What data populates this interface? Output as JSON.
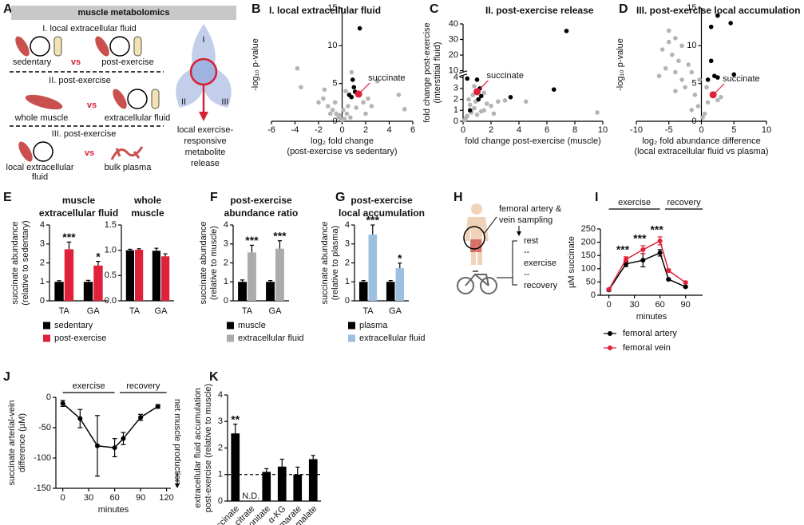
{
  "diagram_a": {
    "panel": "A",
    "header": "muscle metabolomics",
    "rows": [
      {
        "title": "I. local extracellular fluid",
        "left": [
          "sedentary"
        ],
        "vs": "vs",
        "right": [
          "post-exercise"
        ]
      },
      {
        "title": "II. post-exercise",
        "left": [
          "whole muscle"
        ],
        "vs": "vs",
        "right": [
          "extracellular fluid"
        ]
      },
      {
        "title": "III. post-exercise",
        "left": [
          "local extracellular",
          "fluid"
        ],
        "vs": "vs",
        "right": [
          "bulk plasma"
        ]
      }
    ],
    "schematic": {
      "regions": [
        "I",
        "II",
        "III"
      ],
      "caption": [
        "local exercise-",
        "responsive",
        "metabolite",
        "release"
      ]
    }
  },
  "diagram_h": {
    "panel": "H",
    "sampling": [
      "femoral artery &",
      "vein sampling"
    ],
    "protocol": [
      "rest",
      "--",
      "exercise",
      "--",
      "recovery"
    ]
  },
  "chart_data": [
    {
      "type": "scatter",
      "panel": "B",
      "title": "I. local extracellular fluid",
      "x_label": [
        "log₂ fold change",
        "(post-exercise vs sedentary)"
      ],
      "y_label": [
        "-log₁₀ p-value"
      ],
      "xlim": [
        -6,
        6
      ],
      "xticks": [
        -6,
        -4,
        -2,
        0,
        2,
        4,
        6
      ],
      "ylim": [
        0,
        15
      ],
      "yticks": [
        0,
        5,
        10,
        15
      ],
      "series": [
        {
          "color": "#b4b4b4",
          "x": [
            -3.8,
            -3.5,
            -1.6,
            -1.2,
            -0.8,
            -0.5,
            -0.3,
            0.2,
            0.4,
            0.5,
            -1.0,
            0.1,
            1.8,
            2.2,
            3.0,
            2.5,
            4.8,
            5.3,
            0.0,
            -0.2,
            0.7,
            -2.0,
            1.2,
            -0.6,
            0.3,
            0.8,
            -1.5,
            2.0
          ],
          "values": [
            7.0,
            4.5,
            3.0,
            2.0,
            1.5,
            1.0,
            0.5,
            0.3,
            1.0,
            2.0,
            1.0,
            1.5,
            2.5,
            3.0,
            5.3,
            2.0,
            3.5,
            1.6,
            0.2,
            0.8,
            0.5,
            2.5,
            1.8,
            2.5,
            4.0,
            6.5,
            4.2,
            1.0
          ]
        },
        {
          "color": "#000000",
          "x": [
            0.9,
            1.0,
            1.1,
            0.8,
            1.5,
            0.6
          ],
          "values": [
            5.5,
            4.5,
            3.9,
            3.2,
            12.3,
            3.5
          ]
        },
        {
          "name": "succinate",
          "color": "#e0213a",
          "x": [
            1.4
          ],
          "values": [
            3.6
          ]
        }
      ]
    },
    {
      "type": "scatter",
      "panel": "C",
      "title": "II. post-exercise release",
      "x_label": [
        "fold change post-exercise (muscle)"
      ],
      "y_label": [
        "fold change post-exercise",
        "(interstitial fluid)"
      ],
      "xlim": [
        0,
        10
      ],
      "xticks": [
        0,
        2,
        4,
        6,
        8,
        10
      ],
      "ylim": [
        0,
        40
      ],
      "ybreak": [
        4,
        10
      ],
      "yticks": [
        0,
        1,
        2,
        3,
        4,
        10,
        20,
        30,
        40
      ],
      "series": [
        {
          "color": "#b4b4b4",
          "x": [
            0.3,
            0.5,
            0.8,
            0.2,
            0.6,
            1.5,
            2.0,
            1.0,
            0.4,
            1.7,
            2.5,
            3.0,
            0.9,
            1.3,
            0.7,
            2.2,
            9.6,
            0.1,
            4.5,
            1.5,
            0.8
          ],
          "values": [
            0.5,
            1.5,
            1.2,
            0.3,
            0.8,
            1.0,
            1.4,
            0.6,
            2.0,
            1.6,
            1.8,
            1.9,
            1.8,
            0.9,
            2.4,
            0.7,
            0.8,
            0.1,
            1.8,
            2.6,
            3.2
          ]
        },
        {
          "color": "#000000",
          "x": [
            7.4,
            1.0,
            1.2,
            1.3,
            1.1,
            6.5,
            3.4,
            0.5,
            0.3
          ],
          "values": [
            35.5,
            3.8,
            3.0,
            2.3,
            2.0,
            2.9,
            2.2,
            1.0,
            3.9
          ]
        },
        {
          "name": "succinate",
          "color": "#e0213a",
          "x": [
            1.0
          ],
          "values": [
            2.7
          ]
        }
      ]
    },
    {
      "type": "scatter",
      "panel": "D",
      "title": "III. post-exercise local accumulation",
      "x_label": [
        "log₂ fold abundance difference",
        "(local extracellular fluid vs plasma)"
      ],
      "y_label": [
        "-log₁₀ p-value"
      ],
      "xlim": [
        -10,
        10
      ],
      "xticks": [
        -10,
        -5,
        0,
        5,
        10
      ],
      "ylim": [
        0,
        15
      ],
      "yticks": [
        0,
        5,
        10,
        15
      ],
      "series": [
        {
          "color": "#b4b4b4",
          "x": [
            -5.0,
            -4.0,
            -3.0,
            -6.0,
            -4.5,
            -3.5,
            -2.0,
            -5.5,
            -4.0,
            -1.5,
            -3.0,
            -6.5,
            -2.5,
            -1.0,
            -4.0,
            -0.5,
            0.5,
            1.0,
            0.2,
            -1.5,
            2.5,
            3.0,
            0.8,
            -0.3,
            -5.0
          ],
          "values": [
            12.0,
            11.0,
            10.0,
            9.5,
            8.8,
            8.0,
            7.5,
            7.0,
            6.5,
            6.5,
            5.5,
            6.0,
            4.5,
            3.5,
            4.0,
            2.0,
            1.0,
            2.5,
            0.5,
            1.5,
            2.8,
            3.2,
            4.5,
            5.5,
            10.5
          ]
        },
        {
          "color": "#000000",
          "x": [
            1.5,
            2.5,
            4.5,
            1.0,
            2.0,
            1.5,
            2.5,
            5.0
          ],
          "values": [
            12.5,
            14.0,
            13.0,
            5.5,
            6.0,
            8.0,
            5.8,
            6.2
          ]
        },
        {
          "name": "succinate",
          "color": "#e0213a",
          "x": [
            1.8
          ],
          "values": [
            3.5
          ]
        }
      ]
    },
    {
      "type": "bar",
      "panel": "E",
      "title": [
        "muscle",
        "extracellular fluid"
      ],
      "y_label": [
        "succinate abundance",
        "(relative to sedentary)"
      ],
      "categories": [
        "TA",
        "GA"
      ],
      "ylim": [
        0,
        4
      ],
      "yticks": [
        0,
        1,
        2,
        3,
        4
      ],
      "series": [
        {
          "name": "sedentary",
          "color": "#000000",
          "values": [
            1.0,
            1.0
          ],
          "errors": [
            0.06,
            0.08
          ]
        },
        {
          "name": "post-exercise",
          "color": "#e0213a",
          "values": [
            2.72,
            1.86
          ],
          "errors": [
            0.38,
            0.22
          ],
          "stars": [
            "***",
            "*"
          ]
        }
      ]
    },
    {
      "type": "bar",
      "title": [
        "whole",
        "muscle"
      ],
      "categories": [
        "TA",
        "GA"
      ],
      "ylim": [
        0,
        1.5
      ],
      "yticks": [
        {
          "value": 0,
          "label": "0.0"
        },
        {
          "value": 0.5,
          "label": "0.5"
        },
        {
          "value": 1,
          "label": "1.0"
        },
        {
          "value": 1.5,
          "label": "1.5"
        }
      ],
      "series": [
        {
          "color": "#000000",
          "values": [
            1.0,
            0.99
          ],
          "errors": [
            0.02,
            0.05
          ]
        },
        {
          "color": "#e0213a",
          "values": [
            1.01,
            0.88
          ],
          "errors": [
            0.02,
            0.05
          ]
        }
      ]
    },
    {
      "type": "bar",
      "panel": "F",
      "title": [
        "post-exercise",
        "abundance ratio"
      ],
      "y_label": [
        "succinate abundance",
        "(relative to muscle)"
      ],
      "categories": [
        "TA",
        "GA"
      ],
      "ylim": [
        0,
        4
      ],
      "yticks": [
        0,
        1,
        2,
        3,
        4
      ],
      "series": [
        {
          "name": "muscle",
          "color": "#000000",
          "values": [
            1.0,
            1.0
          ],
          "errors": [
            0.1,
            0.07
          ]
        },
        {
          "name": "extracellular fluid",
          "color": "#ababab",
          "values": [
            2.55,
            2.75
          ],
          "errors": [
            0.38,
            0.42
          ],
          "stars": [
            "***",
            "***"
          ]
        }
      ]
    },
    {
      "type": "bar",
      "panel": "G",
      "title": [
        "post-exercise",
        "local accumulation"
      ],
      "y_label": [
        "succinate abundance",
        "(relative to plasma)"
      ],
      "categories": [
        "TA",
        "GA"
      ],
      "ylim": [
        0,
        4
      ],
      "yticks": [
        0,
        1,
        2,
        3,
        4
      ],
      "series": [
        {
          "name": "plasma",
          "color": "#000000",
          "values": [
            1.0,
            1.0
          ],
          "errors": [
            0.07,
            0.07
          ]
        },
        {
          "name": "extracellular fluid",
          "color": "#9dbfe0",
          "values": [
            3.5,
            1.72
          ],
          "errors": [
            0.5,
            0.27
          ],
          "stars": [
            "***",
            "*"
          ]
        }
      ]
    },
    {
      "type": "line",
      "panel": "I",
      "x_label": "minutes",
      "y_label": [
        "µM succinate"
      ],
      "x": [
        0,
        20,
        40,
        60,
        70,
        90
      ],
      "xlim": [
        -10,
        110
      ],
      "xticks": [
        0,
        30,
        60,
        90
      ],
      "ylim": [
        0,
        250
      ],
      "yticks": [
        0,
        50,
        100,
        150,
        200,
        250
      ],
      "phases": [
        {
          "label": "exercise",
          "start": 0,
          "end": 60
        },
        {
          "label": "recovery",
          "start": 66,
          "end": 110
        }
      ],
      "series": [
        {
          "name": "femoral artery",
          "color": "#000000",
          "values": [
            20,
            118,
            132,
            160,
            60,
            32
          ],
          "errors": [
            4,
            10,
            25,
            12,
            3,
            3
          ]
        },
        {
          "name": "femoral vein",
          "color": "#e0213a",
          "values": [
            22,
            135,
            172,
            205,
            93,
            48
          ],
          "errors": [
            4,
            10,
            15,
            15,
            6,
            3
          ]
        }
      ],
      "stars": [
        {
          "x": 20,
          "text": "***"
        },
        {
          "x": 40,
          "text": "***"
        },
        {
          "x": 60,
          "text": "***"
        }
      ]
    },
    {
      "type": "line",
      "panel": "J",
      "x_label": "minutes",
      "y_label": [
        "succinate arterial-vein",
        "difference (µM)"
      ],
      "x": [
        0,
        20,
        40,
        60,
        70,
        90,
        110
      ],
      "xlim": [
        -8,
        125
      ],
      "xticks": [
        0,
        30,
        60,
        90,
        120
      ],
      "ylim": [
        -150,
        0
      ],
      "yticks": [
        -150,
        -100,
        -50,
        0
      ],
      "phases": [
        {
          "label": "exercise",
          "start": 0,
          "end": 60
        },
        {
          "label": "recovery",
          "start": 66,
          "end": 120
        }
      ],
      "series": [
        {
          "color": "#000000",
          "values": [
            -10,
            -35,
            -80,
            -83,
            -68,
            -33,
            -15
          ],
          "errors": [
            5,
            15,
            50,
            15,
            10,
            5,
            3
          ]
        }
      ],
      "side_note": "net muscle production"
    },
    {
      "type": "bar",
      "panel": "K",
      "y_label": [
        "extracellular fluid accumulation",
        "post-exercise  (relative to muscle)"
      ],
      "categories": [
        "succinate",
        "citrate",
        "aconitate",
        "α-KG",
        "fumarate",
        "malate"
      ],
      "xtick_rotation": -45,
      "ylim": [
        0,
        4
      ],
      "yticks": [
        0,
        1,
        2,
        3,
        4
      ],
      "reference_line": 1,
      "nd_label": "N.D.",
      "series": [
        {
          "color": "#000000",
          "values": [
            2.55,
            null,
            1.1,
            1.3,
            1.0,
            1.58
          ],
          "errors": [
            0.35,
            null,
            0.12,
            0.28,
            0.28,
            0.14
          ],
          "stars": [
            "**",
            null,
            null,
            null,
            null,
            null
          ]
        }
      ]
    }
  ]
}
